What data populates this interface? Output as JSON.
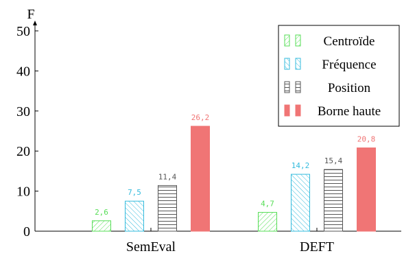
{
  "chart_data": {
    "type": "bar",
    "ylabel": "F",
    "ylim": [
      0,
      50
    ],
    "yticks": [
      0,
      10,
      20,
      30,
      40,
      50
    ],
    "categories": [
      "SemEval",
      "DEFT"
    ],
    "series": [
      {
        "name": "Centroïde",
        "values": [
          2.6,
          4.7
        ],
        "labels": [
          "2,6",
          "4,7"
        ],
        "color": "#55dd55",
        "pattern": "diagonal-hatch"
      },
      {
        "name": "Fréquence",
        "values": [
          7.5,
          14.2
        ],
        "labels": [
          "7,5",
          "14,2"
        ],
        "color": "#33bbdd",
        "pattern": "diagonal-hatch"
      },
      {
        "name": "Position",
        "values": [
          11.4,
          15.4
        ],
        "labels": [
          "11,4",
          "15,4"
        ],
        "color": "#555555",
        "pattern": "horizontal-lines"
      },
      {
        "name": "Borne haute",
        "values": [
          26.2,
          20.8
        ],
        "labels": [
          "26,2",
          "20,8"
        ],
        "color": "#f07575",
        "pattern": "solid"
      }
    ],
    "legend_position": "top-right",
    "grid": false
  }
}
